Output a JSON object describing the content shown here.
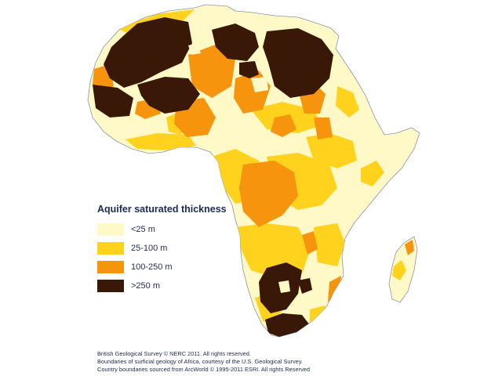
{
  "legend": {
    "title": "Aquifer saturated thickness",
    "items": [
      {
        "label": "<25 m",
        "color": "#fff9c8"
      },
      {
        "label": "25-100 m",
        "color": "#ffd21e"
      },
      {
        "label": "100-250 m",
        "color": "#f7940e"
      },
      {
        "label": ">250 m",
        "color": "#3a1808"
      }
    ]
  },
  "credits": [
    "British Geological Survey © NERC 2011.  All rights reserved.",
    "Boundaries of surficial geology of Africa, courtesy of the U.S. Geological Survey.",
    "Country boundaries sourced from ArcWorld © 1995-2011 ESRI.  All rights Reserved"
  ],
  "map": {
    "base_color": "#fff9c8",
    "outline_color": "#8a96a8"
  }
}
